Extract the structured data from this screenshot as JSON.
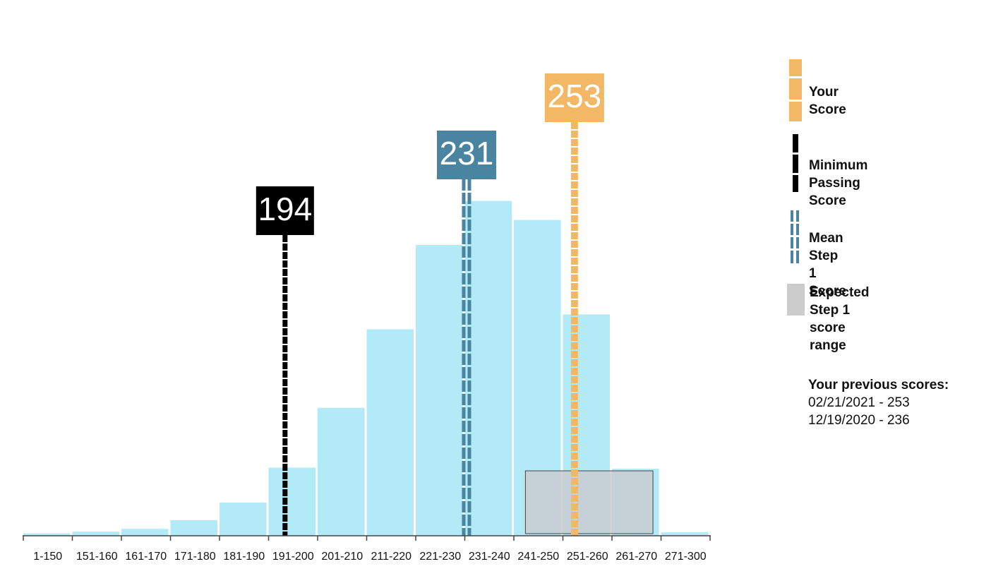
{
  "chart_data": {
    "type": "bar",
    "categories": [
      "1-150",
      "151-160",
      "161-170",
      "171-180",
      "181-190",
      "191-200",
      "201-210",
      "211-220",
      "221-230",
      "231-240",
      "241-250",
      "251-260",
      "261-270",
      "271-300"
    ],
    "values": [
      0.7,
      1.2,
      2.0,
      4.5,
      9.6,
      19.7,
      37.0,
      59.7,
      84.1,
      96.8,
      91.3,
      64.0,
      19.4,
      1.0
    ],
    "ylim": [
      0,
      100
    ],
    "bar_color": "#b2ebf7",
    "markers": [
      {
        "name": "minimum_passing",
        "label": "194",
        "value": 194,
        "color": "#000000",
        "style": "dashed-single"
      },
      {
        "name": "mean",
        "label": "231",
        "value": 231,
        "color": "#4a84a0",
        "style": "dashed-double"
      },
      {
        "name": "your_score",
        "label": "253",
        "value": 253,
        "color": "#f2b866",
        "style": "dashed-thick"
      }
    ],
    "expected_range": {
      "from": 243,
      "to": 269,
      "color": "#c8cdd0"
    }
  },
  "legend": {
    "your_score": "Your Score",
    "minimum_passing": "Minimum Passing Score",
    "mean": "Mean Step 1 Score",
    "expected_line1": "Expected Step 1",
    "expected_line2": "score range"
  },
  "previous": {
    "title": "Your previous scores:",
    "entries": [
      "02/21/2021 - 253",
      "12/19/2020 - 236"
    ]
  }
}
